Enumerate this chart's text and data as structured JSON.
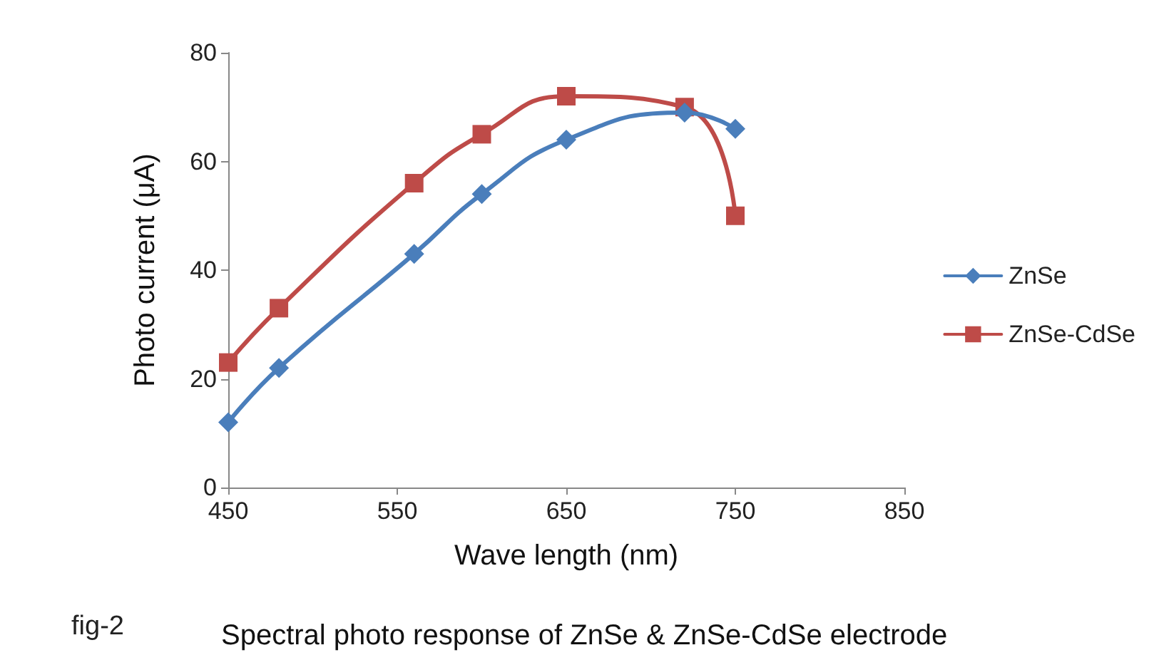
{
  "chart_data": {
    "type": "line",
    "title": "Spectral photo response of ZnSe & ZnSe-CdSe electrode",
    "xlabel": "Wave length (nm)",
    "ylabel": "Photo current (μA)",
    "annotations": [
      "fig-2"
    ],
    "x": [
      450,
      480,
      560,
      600,
      650,
      720,
      750
    ],
    "series": [
      {
        "name": "ZnSe",
        "color": "#4a7ebb",
        "marker": "diamond",
        "values": [
          12,
          22,
          43,
          54,
          64,
          69,
          66
        ]
      },
      {
        "name": "ZnSe-CdSe",
        "color": "#be4b48",
        "marker": "square",
        "values": [
          23,
          33,
          56,
          65,
          72,
          70,
          50
        ]
      }
    ],
    "xlim": [
      450,
      850
    ],
    "xticks": [
      450,
      550,
      650,
      750,
      850
    ],
    "ylim": [
      0,
      80
    ],
    "yticks": [
      0,
      20,
      40,
      60,
      80
    ],
    "grid": false,
    "legend": "right",
    "line_style": "solid"
  }
}
